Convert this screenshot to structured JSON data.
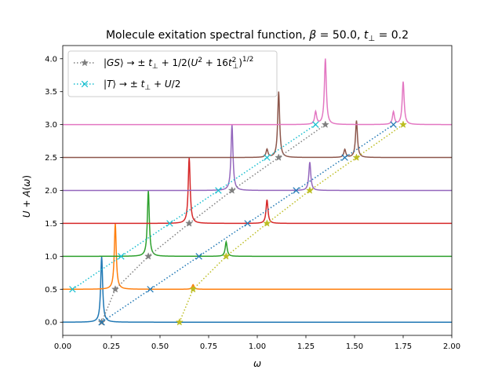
{
  "chart_data": {
    "type": "line",
    "title": "Molecule exitation spectral function, β = 50.0, t⊥ = 0.2",
    "xlabel": "ω",
    "ylabel": "U + A(ω)",
    "xlim": [
      0.0,
      2.0
    ],
    "ylim": [
      -0.2,
      4.2
    ],
    "xticks": [
      "0.00",
      "0.25",
      "0.50",
      "0.75",
      "1.00",
      "1.25",
      "1.50",
      "1.75",
      "2.00"
    ],
    "yticks": [
      "0.0",
      "0.5",
      "1.0",
      "1.5",
      "2.0",
      "2.5",
      "3.0",
      "3.5",
      "4.0"
    ],
    "grid": false,
    "legend_position": "upper-left",
    "legend": [
      {
        "label": "|GS⟩ → ±t⊥ + 1/2(U² + 16t⊥²)^1/2",
        "color": "#7f7f7f",
        "marker": "star"
      },
      {
        "label": "|T⟩ → ±t⊥ + U/2",
        "color": "#17becf",
        "marker": "x"
      }
    ],
    "spectra": [
      {
        "U": 0.0,
        "color": "#1f77b4",
        "peaks": [
          {
            "x": 0.2,
            "h": 1.0
          }
        ]
      },
      {
        "U": 0.5,
        "color": "#ff7f0e",
        "peaks": [
          {
            "x": 0.27,
            "h": 1.0
          },
          {
            "x": 0.67,
            "h": 0.07
          }
        ]
      },
      {
        "U": 1.0,
        "color": "#2ca02c",
        "peaks": [
          {
            "x": 0.44,
            "h": 1.0
          },
          {
            "x": 0.84,
            "h": 0.22
          }
        ]
      },
      {
        "U": 1.5,
        "color": "#d62728",
        "peaks": [
          {
            "x": 0.65,
            "h": 1.0
          },
          {
            "x": 1.05,
            "h": 0.36
          }
        ]
      },
      {
        "U": 2.0,
        "color": "#9467bd",
        "peaks": [
          {
            "x": 0.87,
            "h": 1.0
          },
          {
            "x": 1.27,
            "h": 0.43
          }
        ]
      },
      {
        "U": 2.5,
        "color": "#8c564b",
        "peaks": [
          {
            "x": 1.05,
            "h": 0.12
          },
          {
            "x": 1.11,
            "h": 1.0
          },
          {
            "x": 1.45,
            "h": 0.12
          },
          {
            "x": 1.51,
            "h": 0.56
          }
        ]
      },
      {
        "U": 3.0,
        "color": "#e377c2",
        "peaks": [
          {
            "x": 1.3,
            "h": 0.19
          },
          {
            "x": 1.35,
            "h": 1.0
          },
          {
            "x": 1.7,
            "h": 0.19
          },
          {
            "x": 1.75,
            "h": 0.65
          }
        ]
      }
    ],
    "marker_series": [
      {
        "name": "GS lower",
        "color": "#7f7f7f",
        "marker": "star",
        "x": [
          0.2,
          0.27,
          0.44,
          0.65,
          0.87,
          1.11,
          1.35
        ],
        "y": [
          0.0,
          0.5,
          1.0,
          1.5,
          2.0,
          2.5,
          3.0
        ]
      },
      {
        "name": "GS upper",
        "color": "#bcbd22",
        "marker": "star",
        "x": [
          0.6,
          0.67,
          0.84,
          1.05,
          1.27,
          1.51,
          1.75
        ],
        "y": [
          0.0,
          0.5,
          1.0,
          1.5,
          2.0,
          2.5,
          3.0
        ]
      },
      {
        "name": "T lower",
        "color": "#17becf",
        "marker": "x",
        "x": [
          0.05,
          0.3,
          0.55,
          0.8,
          1.05,
          1.3
        ],
        "y": [
          0.5,
          1.0,
          1.5,
          2.0,
          2.5,
          3.0
        ]
      },
      {
        "name": "T upper",
        "color": "#1f77b4",
        "marker": "x",
        "x": [
          0.2,
          0.45,
          0.7,
          0.95,
          1.2,
          1.45,
          1.7
        ],
        "y": [
          0.0,
          0.5,
          1.0,
          1.5,
          2.0,
          2.5,
          3.0
        ]
      }
    ]
  }
}
